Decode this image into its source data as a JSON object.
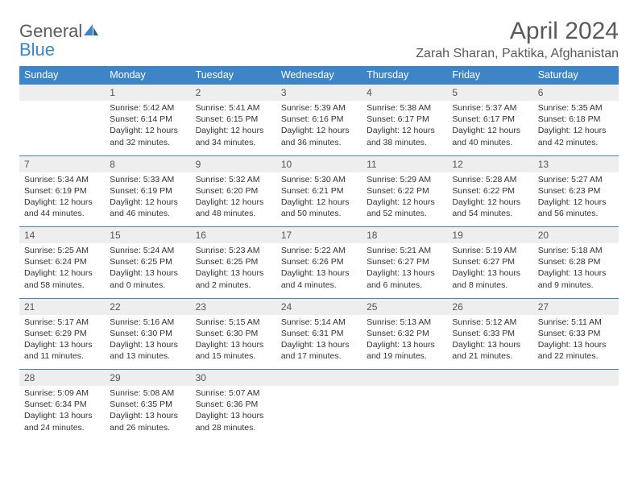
{
  "brand": {
    "word1": "General",
    "word2": "Blue"
  },
  "title": "April 2024",
  "location": "Zarah Sharan, Paktika, Afghanistan",
  "colors": {
    "header_bg": "#3d85c6",
    "header_text": "#ffffff",
    "daynum_bg": "#eeeeee",
    "row_divider": "#3d85c6",
    "body_text": "#333333",
    "title_text": "#5a5a5a"
  },
  "weekdays": [
    "Sunday",
    "Monday",
    "Tuesday",
    "Wednesday",
    "Thursday",
    "Friday",
    "Saturday"
  ],
  "weeks": [
    {
      "nums": [
        "",
        "1",
        "2",
        "3",
        "4",
        "5",
        "6"
      ],
      "cells": [
        null,
        {
          "sunrise": "5:42 AM",
          "sunset": "6:14 PM",
          "day_a": "Daylight: 12 hours",
          "day_b": "and 32 minutes."
        },
        {
          "sunrise": "5:41 AM",
          "sunset": "6:15 PM",
          "day_a": "Daylight: 12 hours",
          "day_b": "and 34 minutes."
        },
        {
          "sunrise": "5:39 AM",
          "sunset": "6:16 PM",
          "day_a": "Daylight: 12 hours",
          "day_b": "and 36 minutes."
        },
        {
          "sunrise": "5:38 AM",
          "sunset": "6:17 PM",
          "day_a": "Daylight: 12 hours",
          "day_b": "and 38 minutes."
        },
        {
          "sunrise": "5:37 AM",
          "sunset": "6:17 PM",
          "day_a": "Daylight: 12 hours",
          "day_b": "and 40 minutes."
        },
        {
          "sunrise": "5:35 AM",
          "sunset": "6:18 PM",
          "day_a": "Daylight: 12 hours",
          "day_b": "and 42 minutes."
        }
      ]
    },
    {
      "nums": [
        "7",
        "8",
        "9",
        "10",
        "11",
        "12",
        "13"
      ],
      "cells": [
        {
          "sunrise": "5:34 AM",
          "sunset": "6:19 PM",
          "day_a": "Daylight: 12 hours",
          "day_b": "and 44 minutes."
        },
        {
          "sunrise": "5:33 AM",
          "sunset": "6:19 PM",
          "day_a": "Daylight: 12 hours",
          "day_b": "and 46 minutes."
        },
        {
          "sunrise": "5:32 AM",
          "sunset": "6:20 PM",
          "day_a": "Daylight: 12 hours",
          "day_b": "and 48 minutes."
        },
        {
          "sunrise": "5:30 AM",
          "sunset": "6:21 PM",
          "day_a": "Daylight: 12 hours",
          "day_b": "and 50 minutes."
        },
        {
          "sunrise": "5:29 AM",
          "sunset": "6:22 PM",
          "day_a": "Daylight: 12 hours",
          "day_b": "and 52 minutes."
        },
        {
          "sunrise": "5:28 AM",
          "sunset": "6:22 PM",
          "day_a": "Daylight: 12 hours",
          "day_b": "and 54 minutes."
        },
        {
          "sunrise": "5:27 AM",
          "sunset": "6:23 PM",
          "day_a": "Daylight: 12 hours",
          "day_b": "and 56 minutes."
        }
      ]
    },
    {
      "nums": [
        "14",
        "15",
        "16",
        "17",
        "18",
        "19",
        "20"
      ],
      "cells": [
        {
          "sunrise": "5:25 AM",
          "sunset": "6:24 PM",
          "day_a": "Daylight: 12 hours",
          "day_b": "and 58 minutes."
        },
        {
          "sunrise": "5:24 AM",
          "sunset": "6:25 PM",
          "day_a": "Daylight: 13 hours",
          "day_b": "and 0 minutes."
        },
        {
          "sunrise": "5:23 AM",
          "sunset": "6:25 PM",
          "day_a": "Daylight: 13 hours",
          "day_b": "and 2 minutes."
        },
        {
          "sunrise": "5:22 AM",
          "sunset": "6:26 PM",
          "day_a": "Daylight: 13 hours",
          "day_b": "and 4 minutes."
        },
        {
          "sunrise": "5:21 AM",
          "sunset": "6:27 PM",
          "day_a": "Daylight: 13 hours",
          "day_b": "and 6 minutes."
        },
        {
          "sunrise": "5:19 AM",
          "sunset": "6:27 PM",
          "day_a": "Daylight: 13 hours",
          "day_b": "and 8 minutes."
        },
        {
          "sunrise": "5:18 AM",
          "sunset": "6:28 PM",
          "day_a": "Daylight: 13 hours",
          "day_b": "and 9 minutes."
        }
      ]
    },
    {
      "nums": [
        "21",
        "22",
        "23",
        "24",
        "25",
        "26",
        "27"
      ],
      "cells": [
        {
          "sunrise": "5:17 AM",
          "sunset": "6:29 PM",
          "day_a": "Daylight: 13 hours",
          "day_b": "and 11 minutes."
        },
        {
          "sunrise": "5:16 AM",
          "sunset": "6:30 PM",
          "day_a": "Daylight: 13 hours",
          "day_b": "and 13 minutes."
        },
        {
          "sunrise": "5:15 AM",
          "sunset": "6:30 PM",
          "day_a": "Daylight: 13 hours",
          "day_b": "and 15 minutes."
        },
        {
          "sunrise": "5:14 AM",
          "sunset": "6:31 PM",
          "day_a": "Daylight: 13 hours",
          "day_b": "and 17 minutes."
        },
        {
          "sunrise": "5:13 AM",
          "sunset": "6:32 PM",
          "day_a": "Daylight: 13 hours",
          "day_b": "and 19 minutes."
        },
        {
          "sunrise": "5:12 AM",
          "sunset": "6:33 PM",
          "day_a": "Daylight: 13 hours",
          "day_b": "and 21 minutes."
        },
        {
          "sunrise": "5:11 AM",
          "sunset": "6:33 PM",
          "day_a": "Daylight: 13 hours",
          "day_b": "and 22 minutes."
        }
      ]
    },
    {
      "nums": [
        "28",
        "29",
        "30",
        "",
        "",
        "",
        ""
      ],
      "cells": [
        {
          "sunrise": "5:09 AM",
          "sunset": "6:34 PM",
          "day_a": "Daylight: 13 hours",
          "day_b": "and 24 minutes."
        },
        {
          "sunrise": "5:08 AM",
          "sunset": "6:35 PM",
          "day_a": "Daylight: 13 hours",
          "day_b": "and 26 minutes."
        },
        {
          "sunrise": "5:07 AM",
          "sunset": "6:36 PM",
          "day_a": "Daylight: 13 hours",
          "day_b": "and 28 minutes."
        },
        null,
        null,
        null,
        null
      ]
    }
  ]
}
